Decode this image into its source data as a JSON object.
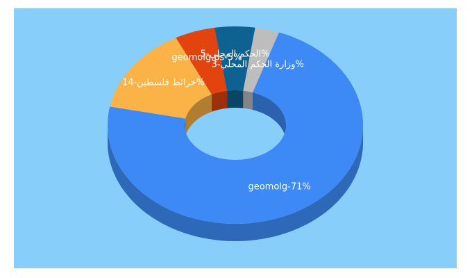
{
  "chart_data": {
    "type": "pie",
    "values": [
      71,
      14,
      5,
      5,
      3
    ],
    "value_labels": [
      "geomolg-71%",
      "خرائط فلسطين-14%",
      "geomolg.ps-5%",
      "الحكم المحلي-5%",
      "وزارة الحكم المحلي-3%"
    ],
    "colors": [
      "#3d8af7",
      "#fbb246",
      "#e2430f",
      "#0e6291",
      "#bdbdbd"
    ]
  }
}
